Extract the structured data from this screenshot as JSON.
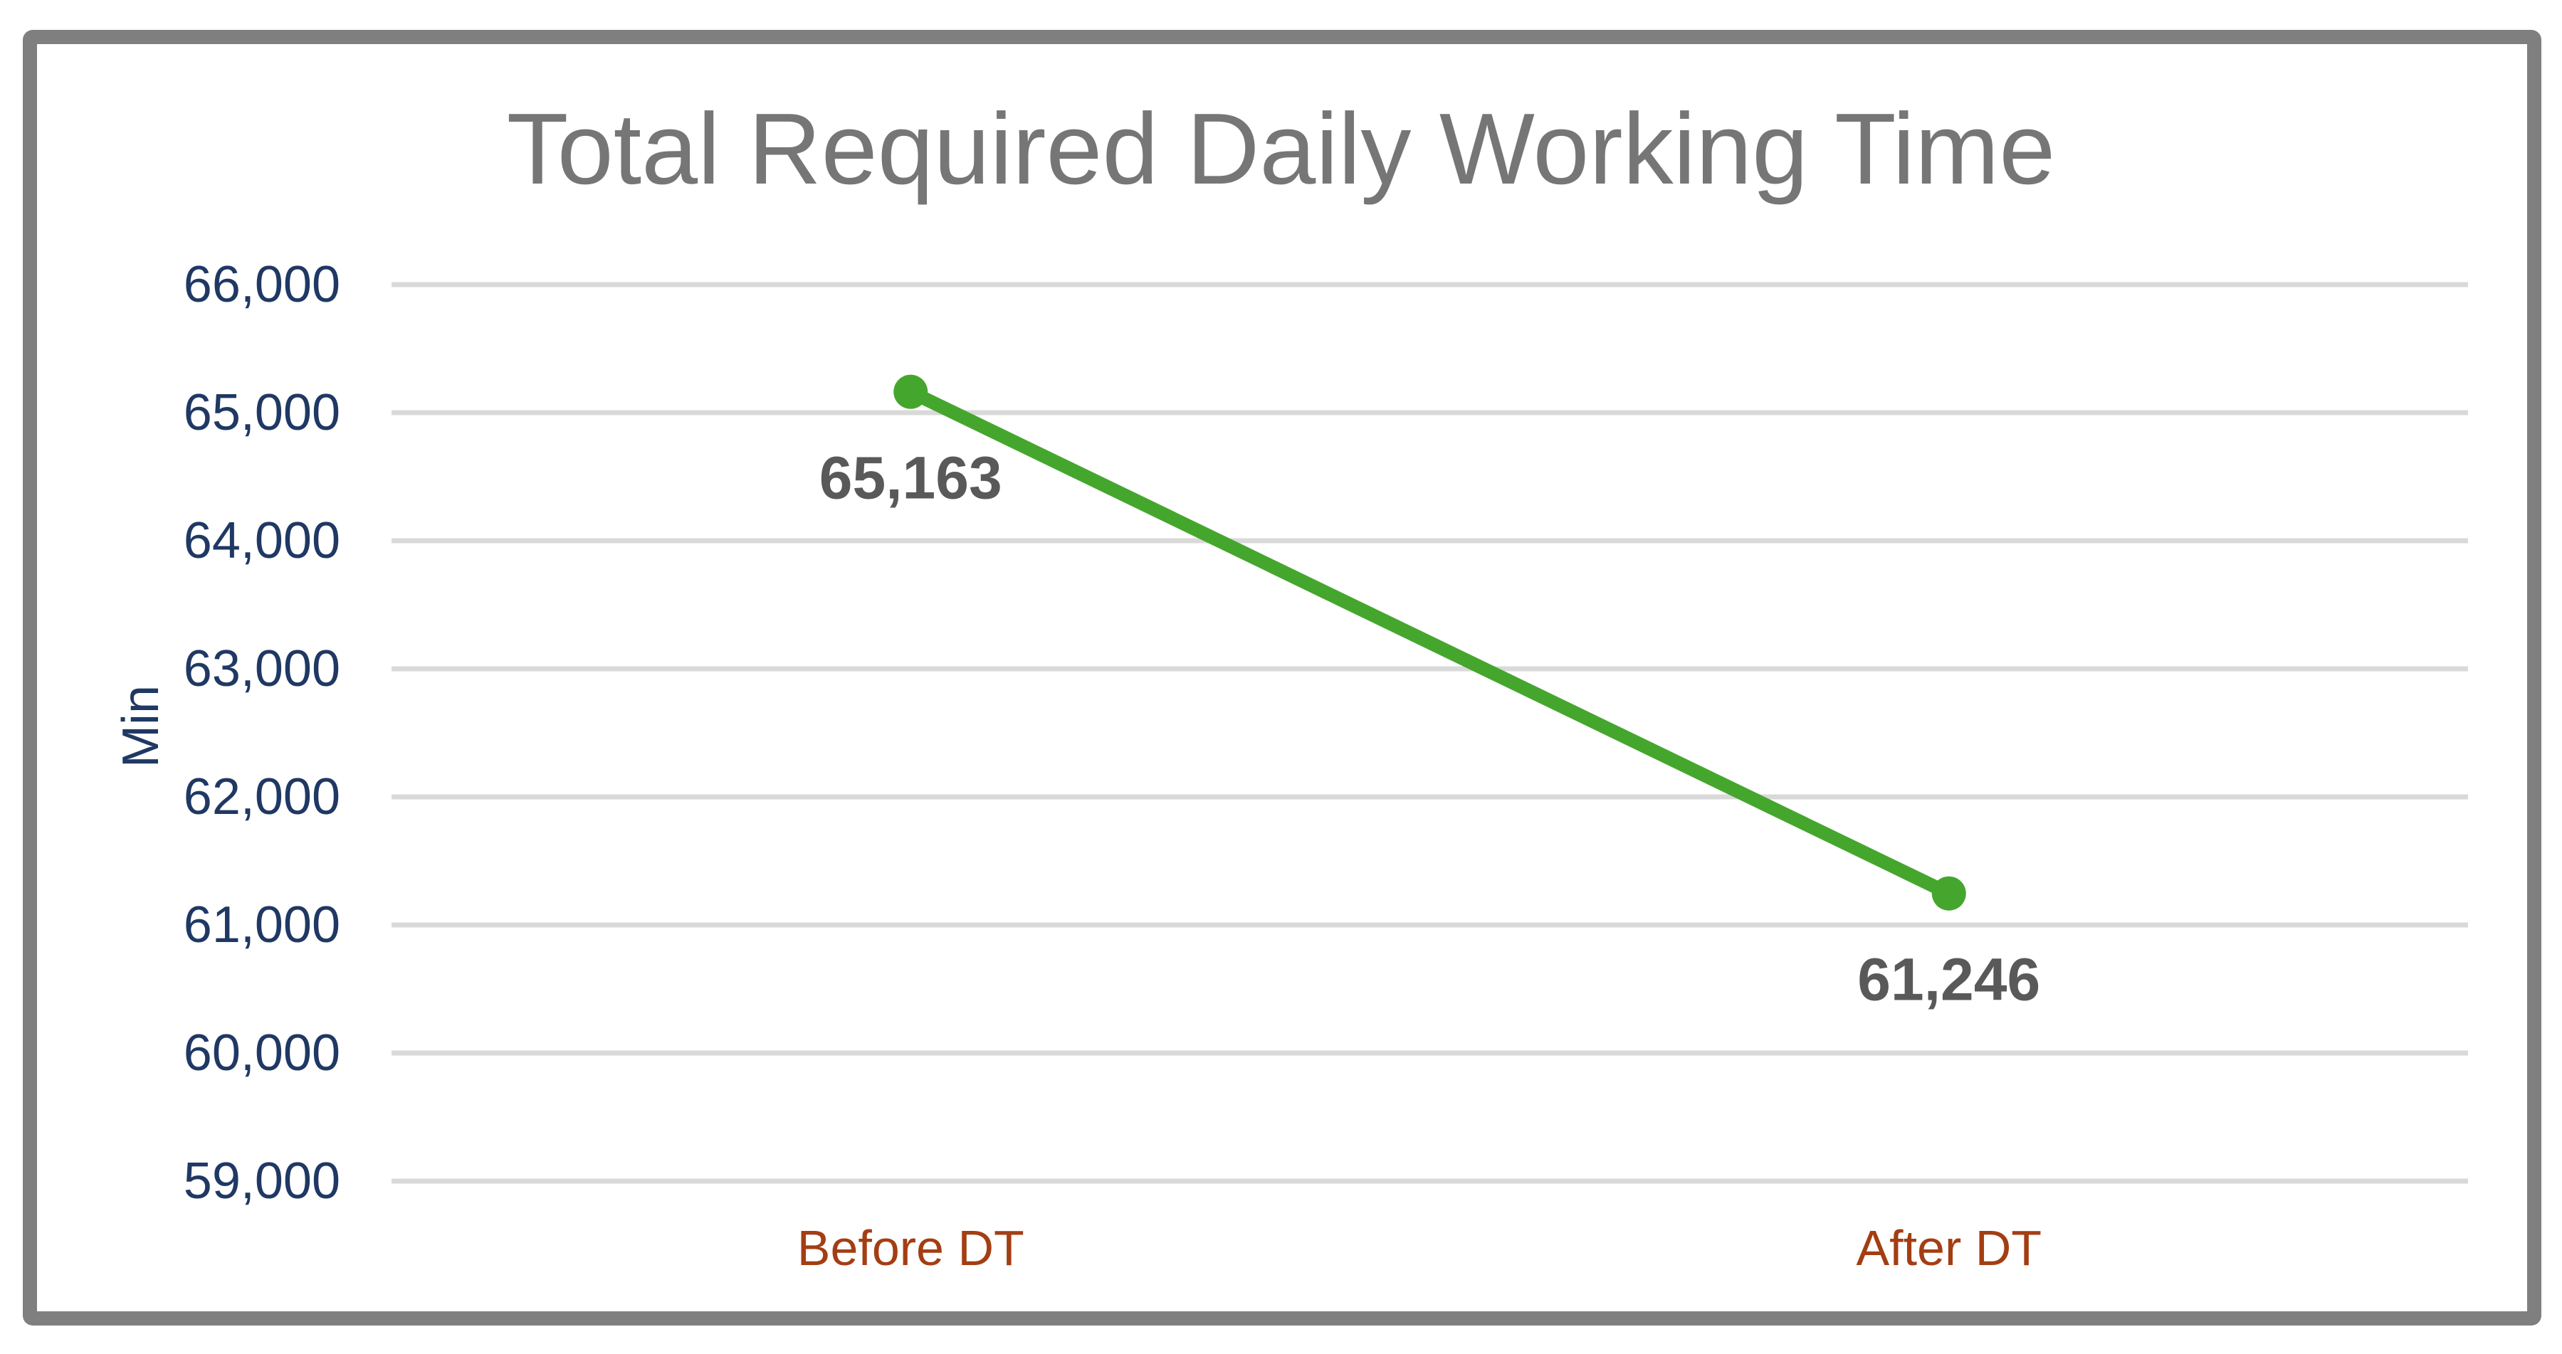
{
  "chart": {
    "title": "Total Required Daily Working Time",
    "y_axis_title": "Min"
  },
  "chart_data": {
    "type": "line",
    "title": "Total Required Daily Working Time",
    "ylabel": "Min",
    "xlabel": "",
    "categories": [
      "Before DT",
      "After DT"
    ],
    "series": [
      {
        "name": "Total Required Daily Working Time",
        "values": [
          65163,
          61246
        ],
        "value_labels": [
          "65,163",
          "61,246"
        ]
      }
    ],
    "ylim": [
      59000,
      66000
    ],
    "yticks": [
      66000,
      65000,
      64000,
      63000,
      62000,
      61000,
      60000,
      59000
    ],
    "ytick_labels": [
      "66,000",
      "65,000",
      "64,000",
      "63,000",
      "62,000",
      "61,000",
      "60,000",
      "59,000"
    ],
    "grid": true,
    "legend": false,
    "data_label_position": "below",
    "colors": {
      "line": "#45A62E",
      "marker": "#45A62E",
      "gridline": "#D9D9D9",
      "ytick_text": "#1F3864",
      "xtick_text": "#A33E13",
      "data_label_text": "#595959",
      "title_text": "#767676",
      "frame_border": "#7F7F7F",
      "background": "#FFFFFF"
    }
  }
}
